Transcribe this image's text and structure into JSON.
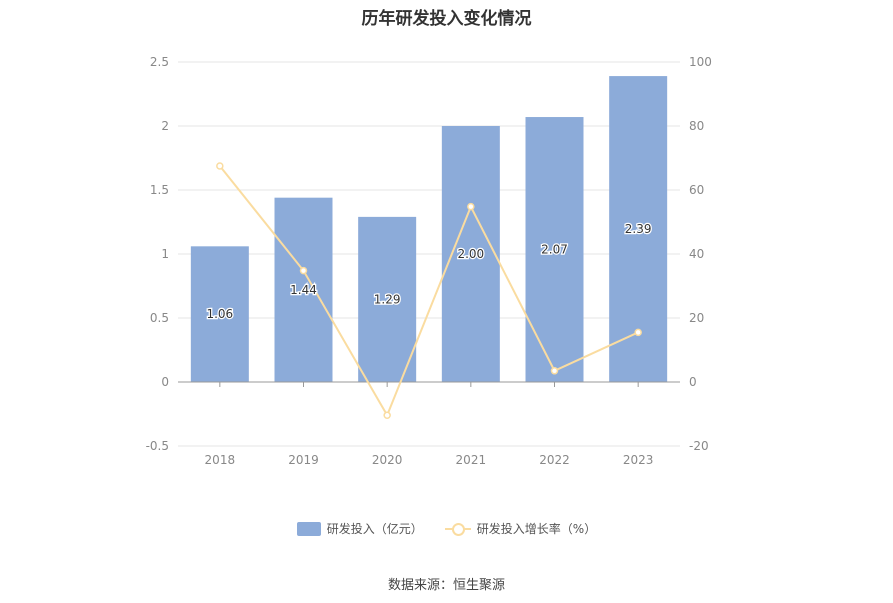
{
  "chart_data": {
    "type": "bar",
    "title": "历年研发投入变化情况",
    "categories": [
      "2018",
      "2019",
      "2020",
      "2021",
      "2022",
      "2023"
    ],
    "series": [
      {
        "name": "研发投入（亿元）",
        "type": "bar",
        "axis": "left",
        "values": [
          1.06,
          1.44,
          1.29,
          2.0,
          2.07,
          2.39
        ],
        "labels": [
          "1.06",
          "1.44",
          "1.29",
          "2.00",
          "2.07",
          "2.39"
        ],
        "color": "#8cabd9"
      },
      {
        "name": "研发投入增长率（%）",
        "type": "line",
        "axis": "right",
        "values": [
          67.5,
          34.8,
          -10.4,
          54.8,
          3.5,
          15.5
        ],
        "color": "#fadca0"
      }
    ],
    "y_left": {
      "ylim": [
        -0.5,
        2.5
      ],
      "ticks": [
        "-0.5",
        "0",
        "0.5",
        "1",
        "1.5",
        "2",
        "2.5"
      ]
    },
    "y_right": {
      "ylim": [
        -20,
        100
      ],
      "ticks": [
        "-20",
        "0",
        "20",
        "40",
        "60",
        "80",
        "100"
      ]
    },
    "grid": true,
    "legend_position": "bottom"
  },
  "legend": {
    "bar_label": "研发投入（亿元）",
    "line_label": "研发投入增长率（%）"
  },
  "source": "数据来源：恒生聚源"
}
